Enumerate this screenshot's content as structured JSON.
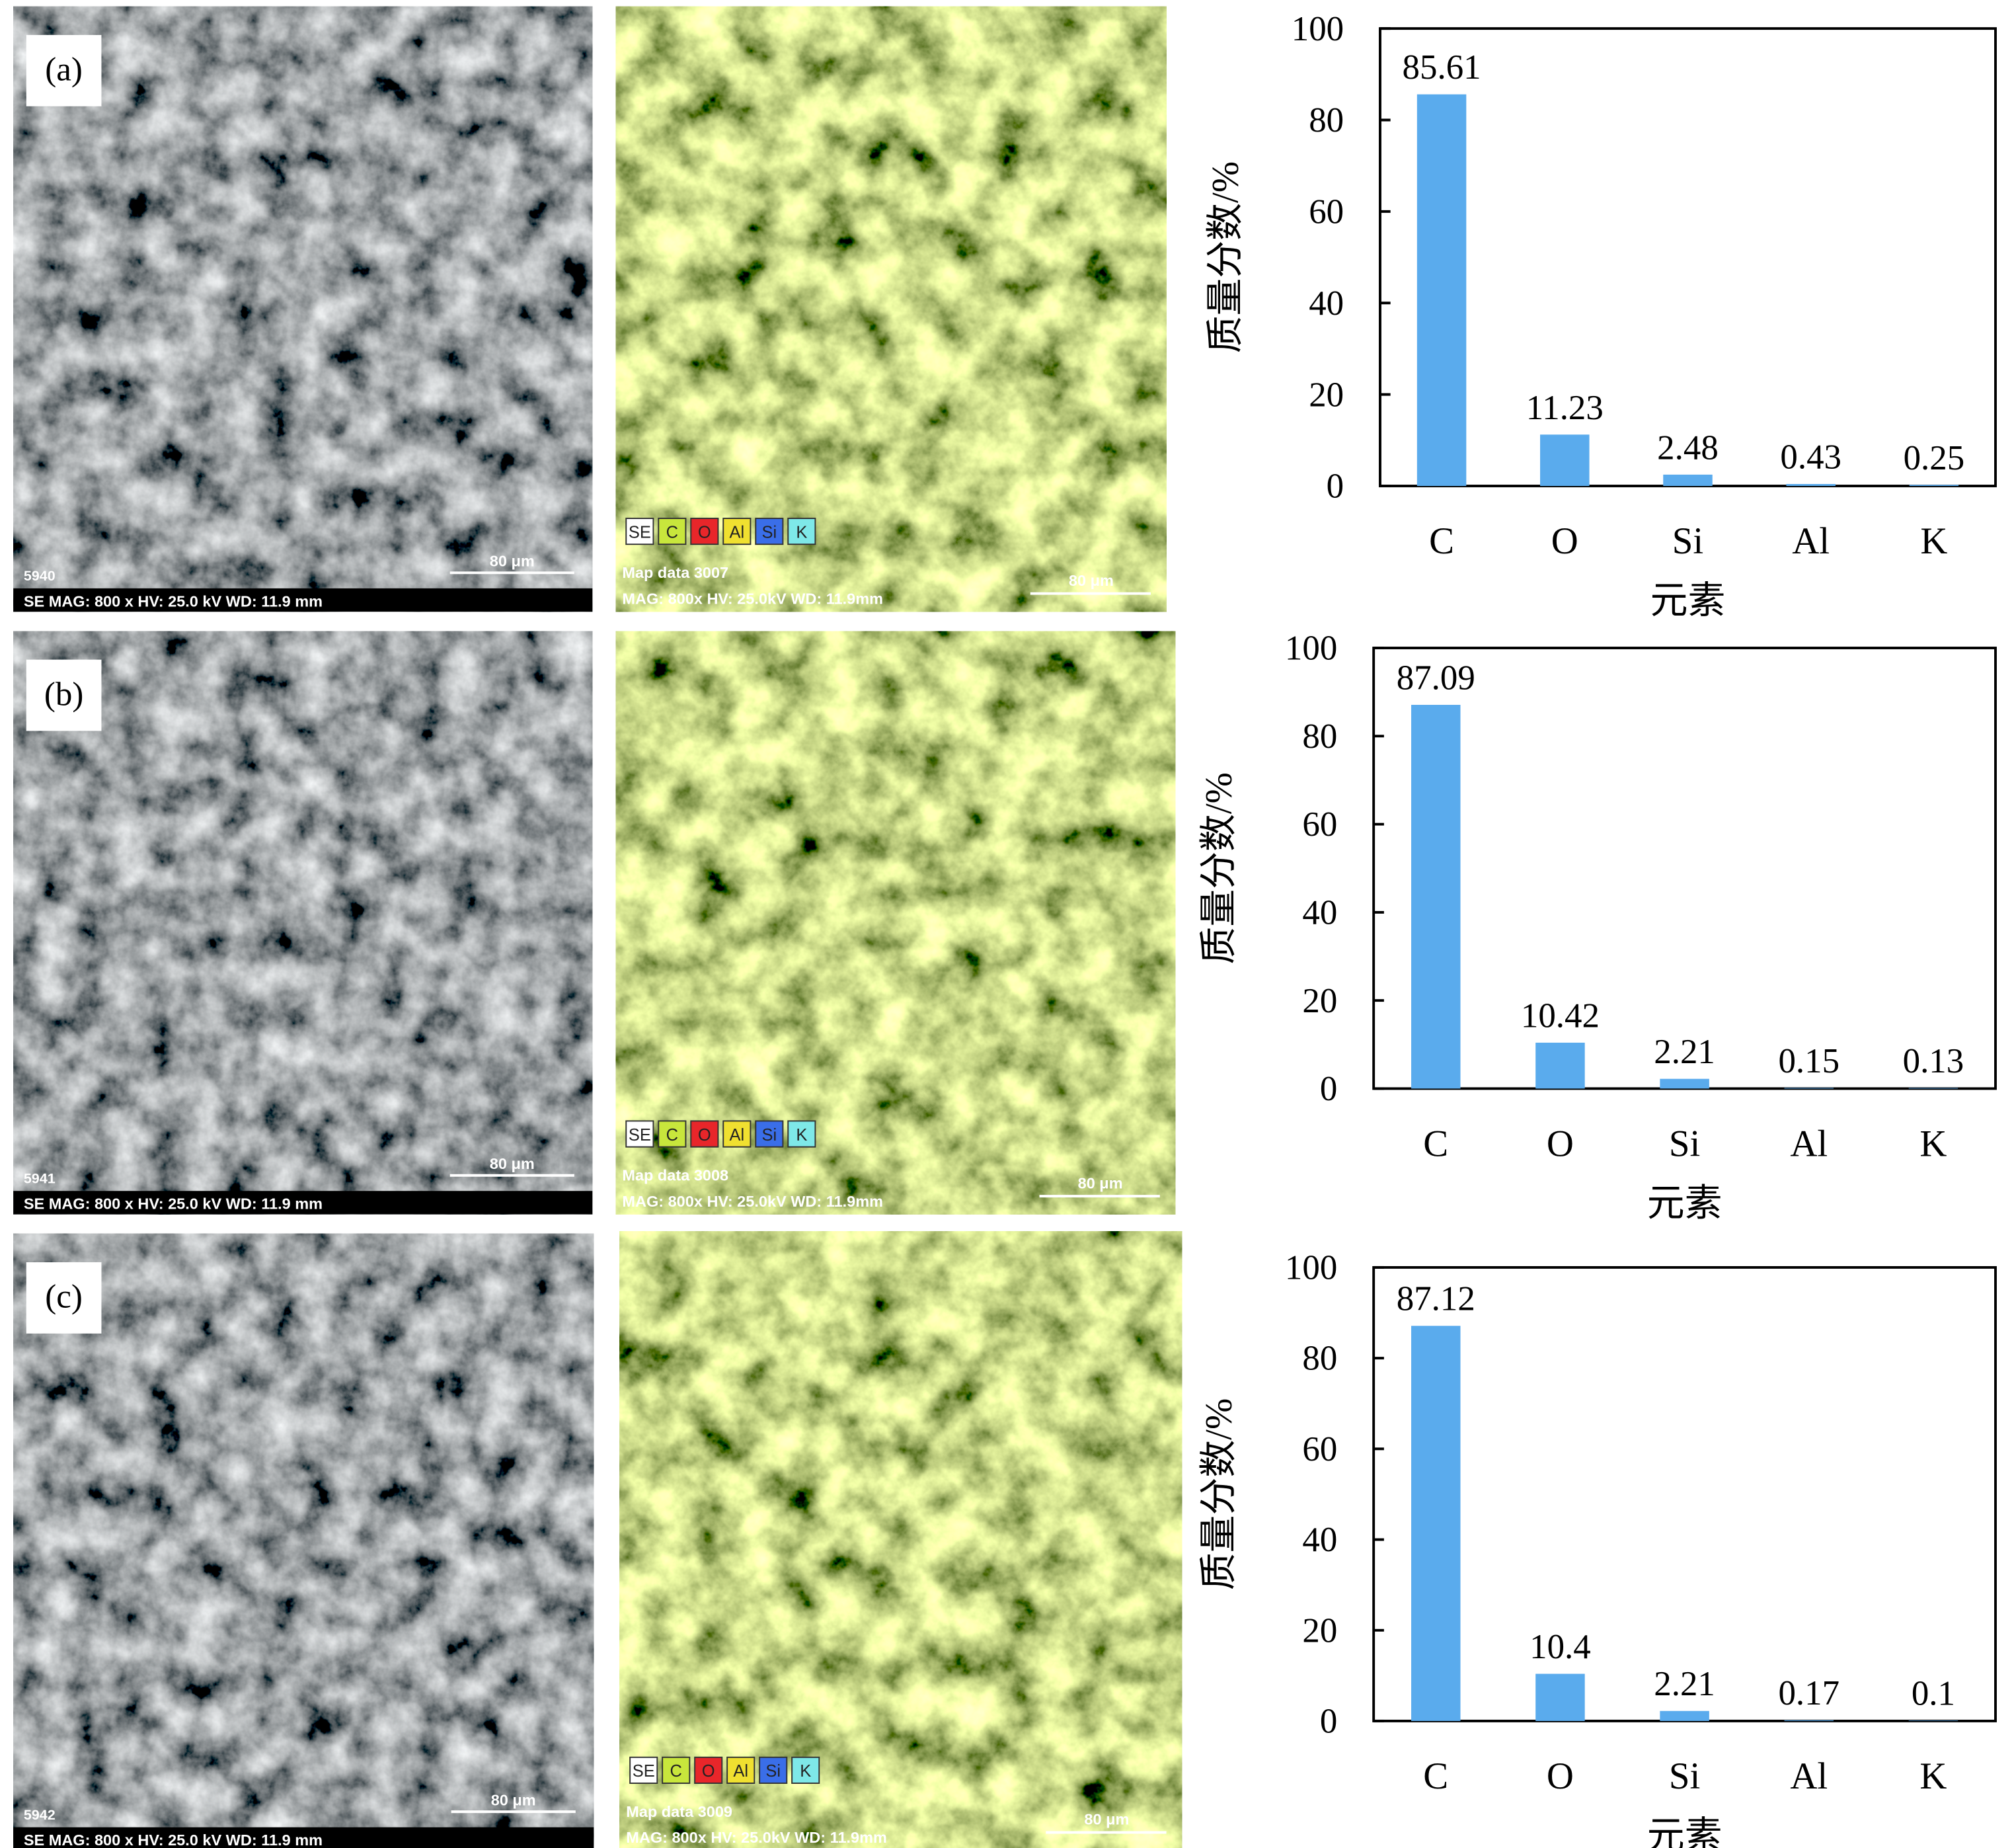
{
  "panels": [
    {
      "label": "(a)",
      "sem": {
        "id": "5940",
        "info": "SE  MAG: 800 x HV: 25.0 kV  WD: 11.9 mm",
        "scale": "80 μm"
      },
      "map": {
        "legend": [
          {
            "name": "SE",
            "color": "#ffffff"
          },
          {
            "name": "C",
            "color": "#c8e63c"
          },
          {
            "name": "O",
            "color": "#e8262a"
          },
          {
            "name": "Al",
            "color": "#f0e030"
          },
          {
            "name": "Si",
            "color": "#3a6ee8"
          },
          {
            "name": "K",
            "color": "#7ee8e8"
          }
        ],
        "id": "Map data 3007",
        "info": "MAG: 800x  HV: 25.0kV  WD: 11.9mm",
        "scale": "80 μm"
      }
    },
    {
      "label": "(b)",
      "sem": {
        "id": "5941",
        "info": "SE  MAG: 800 x HV: 25.0 kV  WD: 11.9 mm",
        "scale": "80 μm"
      },
      "map": {
        "legend": [
          {
            "name": "SE",
            "color": "#ffffff"
          },
          {
            "name": "C",
            "color": "#c8e63c"
          },
          {
            "name": "O",
            "color": "#e8262a"
          },
          {
            "name": "Al",
            "color": "#f0e030"
          },
          {
            "name": "Si",
            "color": "#3a6ee8"
          },
          {
            "name": "K",
            "color": "#7ee8e8"
          }
        ],
        "id": "Map data 3008",
        "info": "MAG: 800x  HV: 25.0kV  WD: 11.9mm",
        "scale": "80 μm"
      }
    },
    {
      "label": "(c)",
      "sem": {
        "id": "5942",
        "info": "SE  MAG: 800 x HV: 25.0 kV  WD: 11.9 mm",
        "scale": "80 μm"
      },
      "map": {
        "legend": [
          {
            "name": "SE",
            "color": "#ffffff"
          },
          {
            "name": "C",
            "color": "#c8e63c"
          },
          {
            "name": "O",
            "color": "#e8262a"
          },
          {
            "name": "Al",
            "color": "#f0e030"
          },
          {
            "name": "Si",
            "color": "#3a6ee8"
          },
          {
            "name": "K",
            "color": "#7ee8e8"
          }
        ],
        "id": "Map data 3009",
        "info": "MAG: 800x  HV: 25.0kV  WD: 11.9mm",
        "scale": "80 μm"
      }
    }
  ],
  "chart_data": [
    {
      "type": "bar",
      "categories": [
        "C",
        "O",
        "Si",
        "Al",
        "K"
      ],
      "values": [
        85.61,
        11.23,
        2.48,
        0.43,
        0.25
      ],
      "color": "#5aabed",
      "x_label": "元素",
      "y_label": "质量分数/%",
      "ylim": [
        0,
        100
      ],
      "yticks": [
        0,
        20,
        40,
        60,
        80,
        100
      ]
    },
    {
      "type": "bar",
      "categories": [
        "C",
        "O",
        "Si",
        "Al",
        "K"
      ],
      "values": [
        87.09,
        10.42,
        2.21,
        0.15,
        0.13
      ],
      "color": "#5aabed",
      "x_label": "元素",
      "y_label": "质量分数/%",
      "ylim": [
        0,
        100
      ],
      "yticks": [
        0,
        20,
        40,
        60,
        80,
        100
      ]
    },
    {
      "type": "bar",
      "categories": [
        "C",
        "O",
        "Si",
        "Al",
        "K"
      ],
      "values": [
        87.12,
        10.4,
        2.21,
        0.17,
        0.1
      ],
      "color": "#5aabed",
      "x_label": "元素",
      "y_label": "质量分数/%",
      "ylim": [
        0,
        100
      ],
      "yticks": [
        0,
        20,
        40,
        60,
        80,
        100
      ]
    }
  ]
}
